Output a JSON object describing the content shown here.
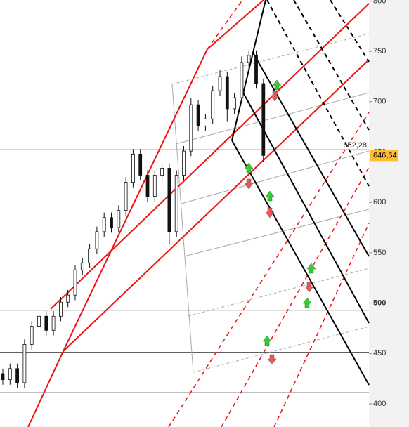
{
  "chart_data": {
    "type": "candlestick",
    "open": [
      430,
      424,
      435,
      421,
      459,
      477,
      487,
      473,
      487,
      501,
      508,
      533,
      540,
      554,
      571,
      585,
      575,
      592,
      620,
      648,
      627,
      606,
      627,
      634,
      571,
      627,
      651,
      697,
      676,
      683,
      711,
      725,
      693,
      704,
      739,
      746,
      718
    ],
    "high": [
      435,
      440,
      440,
      464,
      482,
      492,
      492,
      492,
      506,
      513,
      538,
      545,
      559,
      576,
      590,
      590,
      597,
      625,
      653,
      653,
      632,
      632,
      639,
      639,
      632,
      656,
      704,
      702,
      688,
      716,
      732,
      730,
      709,
      745,
      751,
      751,
      723
    ],
    "low": [
      419,
      419,
      416,
      416,
      454,
      472,
      468,
      468,
      482,
      496,
      503,
      528,
      535,
      549,
      566,
      570,
      570,
      587,
      615,
      622,
      600,
      601,
      622,
      558,
      566,
      622,
      646,
      671,
      671,
      678,
      706,
      680,
      688,
      699,
      734,
      713,
      640
    ],
    "close": [
      424,
      435,
      421,
      459,
      477,
      487,
      473,
      487,
      501,
      508,
      533,
      540,
      554,
      571,
      585,
      575,
      592,
      620,
      648,
      627,
      606,
      627,
      634,
      571,
      627,
      651,
      697,
      676,
      683,
      711,
      725,
      693,
      704,
      739,
      746,
      718,
      646.64
    ],
    "color_up": "#111111",
    "color_down": "#111111",
    "ylim": [
      377,
      801
    ],
    "yticks": [
      400,
      450,
      500,
      550,
      600,
      650,
      700,
      750,
      800
    ],
    "levels": [
      493,
      451,
      411
    ],
    "hline": {
      "value": 652.28,
      "label": "652,28"
    },
    "last_price": {
      "value": 646.64,
      "label": "646,64"
    }
  }
}
